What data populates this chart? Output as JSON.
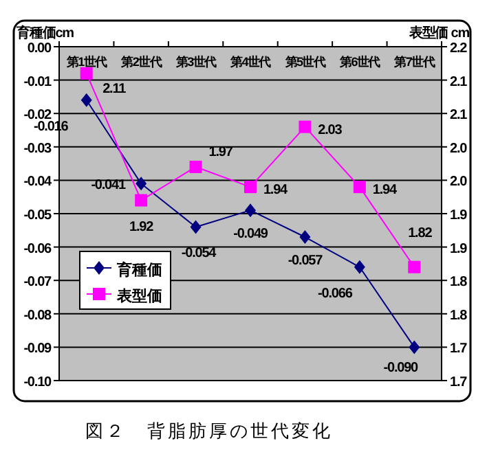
{
  "chart_data": {
    "type": "line",
    "ylabel": "育種価cm",
    "y2label": "表型価 cm",
    "categories": [
      "第1世代",
      "第2世代",
      "第3世代",
      "第4世代",
      "第5世代",
      "第6世代",
      "第7世代"
    ],
    "series": [
      {
        "name": "育種価",
        "color": "#000080",
        "marker": "diamond",
        "values": [
          -0.016,
          -0.041,
          -0.054,
          -0.049,
          -0.057,
          -0.066,
          -0.09
        ],
        "value_labels": [
          "-0.016",
          "-0.041",
          "-0.054",
          "-0.049",
          "-0.057",
          "-0.066",
          "-0.090"
        ]
      },
      {
        "name": "表型価",
        "color": "#ff00ff",
        "marker": "square",
        "axis": "y2",
        "values": [
          2.11,
          1.92,
          1.97,
          1.94,
          2.03,
          1.94,
          1.82
        ],
        "value_labels": [
          "2.11",
          "1.92",
          "1.97",
          "1.94",
          "2.03",
          "1.94",
          "1.82"
        ]
      }
    ],
    "ylim": [
      -0.1,
      0
    ],
    "yticks": [
      {
        "value": 0,
        "label": "0.00"
      },
      {
        "value": -0.01,
        "label": "-0.01"
      },
      {
        "value": -0.02,
        "label": "-0.02"
      },
      {
        "value": -0.03,
        "label": "-0.03"
      },
      {
        "value": -0.04,
        "label": "-0.04"
      },
      {
        "value": -0.05,
        "label": "-0.05"
      },
      {
        "value": -0.06,
        "label": "-0.06"
      },
      {
        "value": -0.07,
        "label": "-0.07"
      },
      {
        "value": -0.08,
        "label": "-0.08"
      },
      {
        "value": -0.09,
        "label": "-0.09"
      },
      {
        "value": -0.1,
        "label": "-0.10"
      }
    ],
    "y2lim": [
      1.65,
      2.15
    ],
    "y2ticks": [
      {
        "value": 2.15,
        "label": "2.2"
      },
      {
        "value": 2.1,
        "label": "2.1"
      },
      {
        "value": 2.05,
        "label": "2.1"
      },
      {
        "value": 2.0,
        "label": "2.0"
      },
      {
        "value": 1.95,
        "label": "2.0"
      },
      {
        "value": 1.9,
        "label": "1.9"
      },
      {
        "value": 1.85,
        "label": "1.9"
      },
      {
        "value": 1.8,
        "label": "1.8"
      },
      {
        "value": 1.75,
        "label": "1.8"
      },
      {
        "value": 1.7,
        "label": "1.7"
      },
      {
        "value": 1.65,
        "label": "1.7"
      }
    ],
    "grid": "y",
    "legend": "left",
    "annotations": [
      "図２　背脂肪厚の世代変化"
    ]
  }
}
